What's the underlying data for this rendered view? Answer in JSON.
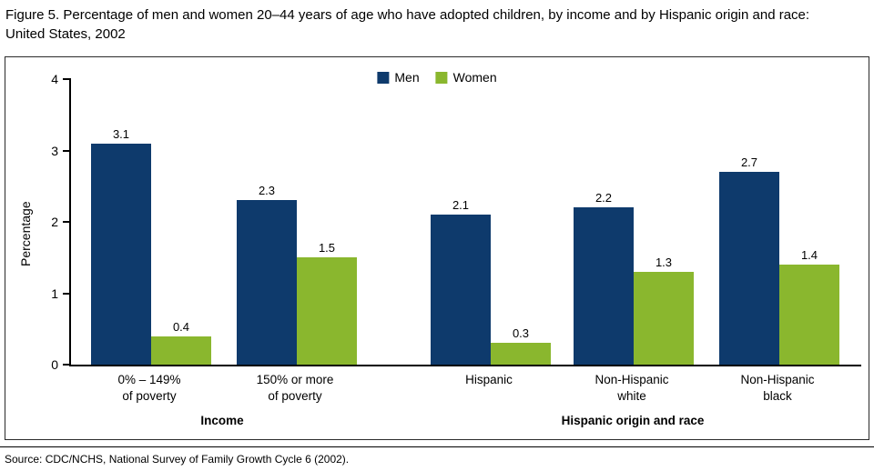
{
  "figure": {
    "title": "Figure 5. Percentage of men and women 20–44 years of age who have adopted children, by income and by Hispanic origin and race: United States, 2002",
    "source": "Source: CDC/NCHS, National Survey of Family Growth Cycle 6 (2002)."
  },
  "chart_data": {
    "type": "bar",
    "title": "Percentage of men and women 20–44 years of age who have adopted children, by income and by Hispanic origin and race: United States, 2002",
    "ylabel": "Percentage",
    "ylim": [
      0,
      4
    ],
    "yticks": [
      0,
      1,
      2,
      3,
      4
    ],
    "legend_position": "top-center",
    "grid": "off",
    "categories": [
      "0% – 149%\nof poverty",
      "150% or more\nof poverty",
      "Hispanic",
      "Non-Hispanic\nwhite",
      "Non-Hispanic\nblack"
    ],
    "category_groups": [
      {
        "label": "Income",
        "category_indices": [
          0,
          1
        ]
      },
      {
        "label": "Hispanic origin and race",
        "category_indices": [
          2,
          3,
          4
        ]
      }
    ],
    "series": [
      {
        "name": "Men",
        "color": "#0e3a6c",
        "values": [
          3.1,
          2.3,
          2.1,
          2.2,
          2.7
        ]
      },
      {
        "name": "Women",
        "color": "#8ab72e",
        "values": [
          0.4,
          1.5,
          0.3,
          1.3,
          1.4
        ]
      }
    ]
  }
}
